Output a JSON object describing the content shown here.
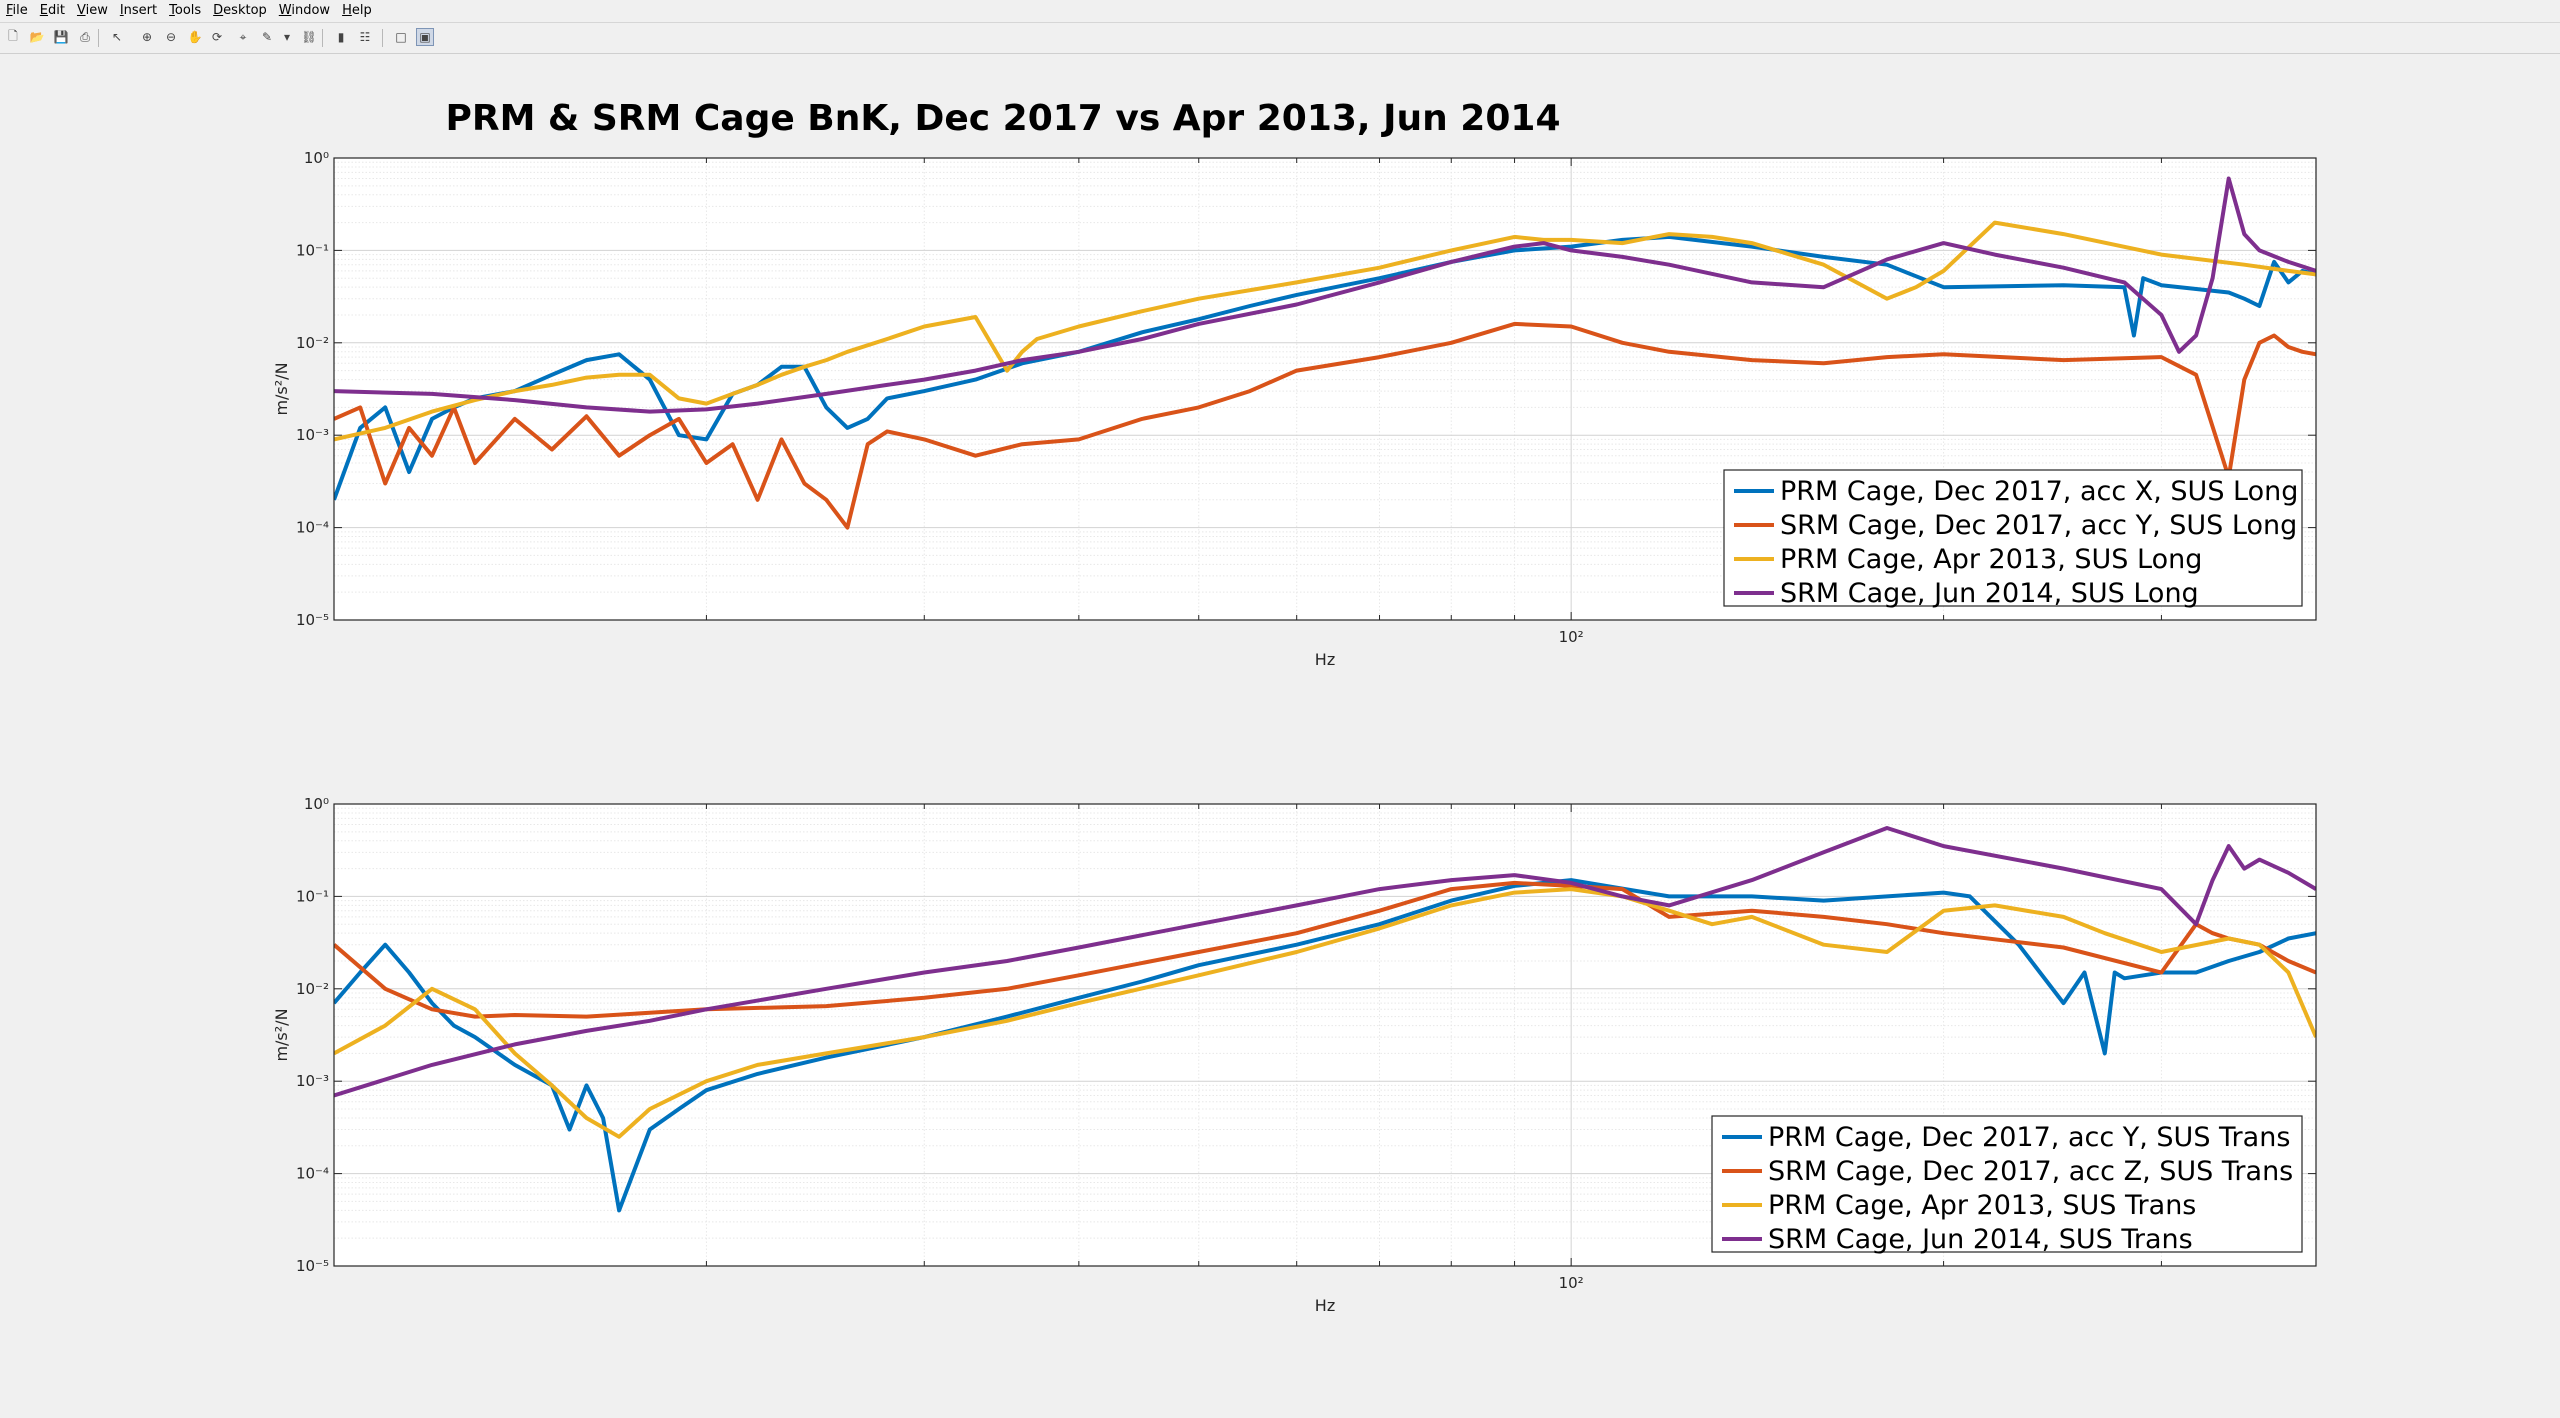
{
  "menu": [
    "File",
    "Edit",
    "View",
    "Insert",
    "Tools",
    "Desktop",
    "Window",
    "Help"
  ],
  "toolbar": [
    {
      "icon": "new-figure-icon",
      "glyph": "🗋"
    },
    {
      "icon": "open-file-icon",
      "glyph": "📂"
    },
    {
      "icon": "save-icon",
      "glyph": "💾"
    },
    {
      "icon": "print-icon",
      "glyph": "⎙"
    },
    {
      "icon": "select-arrow-icon",
      "glyph": "↖"
    },
    {
      "icon": "zoom-in-icon",
      "glyph": "⊕"
    },
    {
      "icon": "zoom-out-icon",
      "glyph": "⊖"
    },
    {
      "icon": "pan-icon",
      "glyph": "✋"
    },
    {
      "icon": "rotate-3d-icon",
      "glyph": "⟳"
    },
    {
      "icon": "data-cursor-icon",
      "glyph": "⌖"
    },
    {
      "icon": "brush-icon",
      "glyph": "✎"
    },
    {
      "icon": "brush-menu-icon",
      "glyph": "▾"
    },
    {
      "icon": "link-plot-icon",
      "glyph": "⛓"
    },
    {
      "icon": "colorbar-icon",
      "glyph": "▮"
    },
    {
      "icon": "legend-icon",
      "glyph": "☷"
    },
    {
      "icon": "hide-plot-tools-icon",
      "glyph": "□"
    },
    {
      "icon": "show-plot-tools-icon",
      "glyph": "▣"
    }
  ],
  "colors": {
    "blue": "#0072BD",
    "orange": "#D95319",
    "yellow": "#EDB120",
    "purple": "#7E2F8E"
  },
  "chart_data": [
    {
      "type": "line",
      "title": "PRM & SRM Cage BnK, Dec 2017 vs Apr 2013, Jun 2014",
      "xlabel": "Hz",
      "ylabel": "m/s²/N",
      "xscale": "log",
      "yscale": "log",
      "xlim": [
        10,
        400
      ],
      "ylim": [
        1e-05,
        1
      ],
      "x_tick_label": "10²",
      "y_tick_labels": [
        "10⁰",
        "10⁻¹",
        "10⁻²",
        "10⁻³",
        "10⁻⁴",
        "10⁻⁵"
      ],
      "grid": "on",
      "legend_location": "bottom-right",
      "series": [
        {
          "name": "PRM Cage, Dec 2017, acc X, SUS Long",
          "color": "#0072BD",
          "x": [
            10,
            10.5,
            11,
            11.5,
            12,
            12.5,
            13,
            14,
            15,
            16,
            17,
            18,
            19,
            20,
            21,
            22,
            23,
            24,
            25,
            26,
            27,
            28,
            30,
            33,
            36,
            40,
            45,
            50,
            55,
            60,
            70,
            80,
            90,
            100,
            110,
            120,
            140,
            160,
            180,
            200,
            250,
            280,
            285,
            290,
            300,
            340,
            350,
            360,
            370,
            380,
            390,
            400
          ],
          "y": [
            0.0002,
            0.0012,
            0.002,
            0.0004,
            0.0015,
            0.002,
            0.0025,
            0.003,
            0.0045,
            0.0065,
            0.0075,
            0.004,
            0.001,
            0.0009,
            0.0028,
            0.0035,
            0.0055,
            0.0055,
            0.002,
            0.0012,
            0.0015,
            0.0025,
            0.003,
            0.004,
            0.006,
            0.008,
            0.013,
            0.018,
            0.025,
            0.033,
            0.05,
            0.075,
            0.1,
            0.11,
            0.13,
            0.14,
            0.11,
            0.085,
            0.07,
            0.04,
            0.042,
            0.04,
            0.012,
            0.05,
            0.042,
            0.035,
            0.03,
            0.025,
            0.075,
            0.045,
            0.06,
            0.055
          ]
        },
        {
          "name": "SRM Cage, Dec 2017, acc Y, SUS Long",
          "color": "#D95319",
          "x": [
            10,
            10.5,
            11,
            11.5,
            12,
            12.5,
            13,
            14,
            15,
            16,
            17,
            18,
            19,
            20,
            21,
            22,
            23,
            24,
            25,
            26,
            27,
            28,
            30,
            33,
            36,
            40,
            45,
            50,
            55,
            60,
            70,
            80,
            90,
            100,
            110,
            120,
            140,
            160,
            180,
            200,
            250,
            300,
            320,
            340,
            350,
            360,
            370,
            380,
            390,
            400
          ],
          "y": [
            0.0015,
            0.002,
            0.0003,
            0.0012,
            0.0006,
            0.002,
            0.0005,
            0.0015,
            0.0007,
            0.0016,
            0.0006,
            0.001,
            0.0015,
            0.0005,
            0.0008,
            0.0002,
            0.0009,
            0.0003,
            0.0002,
            0.0001,
            0.0008,
            0.0011,
            0.0009,
            0.0006,
            0.0008,
            0.0009,
            0.0015,
            0.002,
            0.003,
            0.005,
            0.007,
            0.01,
            0.016,
            0.015,
            0.01,
            0.008,
            0.0065,
            0.006,
            0.007,
            0.0075,
            0.0065,
            0.007,
            0.0045,
            0.00035,
            0.004,
            0.01,
            0.012,
            0.009,
            0.008,
            0.0075
          ]
        },
        {
          "name": "PRM Cage, Apr 2013, SUS Long",
          "color": "#EDB120",
          "x": [
            10,
            11,
            12,
            13,
            14,
            15,
            16,
            17,
            18,
            19,
            20,
            21,
            22,
            23,
            24,
            25,
            26,
            28,
            30,
            33,
            35,
            36,
            37,
            40,
            45,
            50,
            60,
            70,
            80,
            90,
            95,
            100,
            110,
            120,
            130,
            140,
            160,
            180,
            190,
            200,
            220,
            250,
            300,
            350,
            380,
            400
          ],
          "y": [
            0.0009,
            0.0012,
            0.0018,
            0.0024,
            0.003,
            0.0035,
            0.0042,
            0.0045,
            0.0045,
            0.0025,
            0.0022,
            0.0028,
            0.0035,
            0.0045,
            0.0055,
            0.0065,
            0.008,
            0.011,
            0.015,
            0.019,
            0.005,
            0.008,
            0.011,
            0.015,
            0.022,
            0.03,
            0.045,
            0.065,
            0.1,
            0.14,
            0.13,
            0.13,
            0.12,
            0.15,
            0.14,
            0.12,
            0.07,
            0.03,
            0.04,
            0.06,
            0.2,
            0.15,
            0.09,
            0.07,
            0.06,
            0.055
          ]
        },
        {
          "name": "SRM Cage, Jun 2014, SUS Long",
          "color": "#7E2F8E",
          "x": [
            10,
            12,
            14,
            16,
            18,
            20,
            22,
            25,
            28,
            30,
            33,
            36,
            40,
            45,
            50,
            60,
            70,
            80,
            90,
            95,
            100,
            110,
            120,
            140,
            160,
            180,
            200,
            220,
            250,
            280,
            300,
            310,
            320,
            330,
            340,
            350,
            360,
            380,
            400
          ],
          "y": [
            0.003,
            0.0028,
            0.0024,
            0.002,
            0.0018,
            0.0019,
            0.0022,
            0.0028,
            0.0035,
            0.004,
            0.005,
            0.0065,
            0.008,
            0.011,
            0.016,
            0.026,
            0.045,
            0.075,
            0.11,
            0.12,
            0.1,
            0.085,
            0.07,
            0.045,
            0.04,
            0.08,
            0.12,
            0.09,
            0.065,
            0.045,
            0.02,
            0.008,
            0.012,
            0.05,
            0.6,
            0.15,
            0.1,
            0.075,
            0.06
          ]
        }
      ]
    },
    {
      "type": "line",
      "title": "",
      "xlabel": "Hz",
      "ylabel": "m/s²/N",
      "xscale": "log",
      "yscale": "log",
      "xlim": [
        10,
        400
      ],
      "ylim": [
        1e-05,
        1
      ],
      "x_tick_label": "10²",
      "y_tick_labels": [
        "10⁰",
        "10⁻¹",
        "10⁻²",
        "10⁻³",
        "10⁻⁴",
        "10⁻⁵"
      ],
      "grid": "on",
      "legend_location": "bottom-right",
      "series": [
        {
          "name": "PRM Cage, Dec 2017, acc Y, SUS Trans",
          "color": "#0072BD",
          "x": [
            10,
            10.5,
            11,
            11.5,
            12,
            12.5,
            13,
            14,
            15,
            15.5,
            16,
            16.5,
            17,
            18,
            19,
            20,
            22,
            25,
            30,
            35,
            40,
            45,
            50,
            60,
            70,
            80,
            90,
            100,
            120,
            140,
            160,
            180,
            200,
            210,
            230,
            250,
            260,
            270,
            275,
            280,
            300,
            320,
            340,
            360,
            380,
            400
          ],
          "y": [
            0.007,
            0.015,
            0.03,
            0.015,
            0.007,
            0.004,
            0.003,
            0.0015,
            0.0009,
            0.0003,
            0.0009,
            0.0004,
            4e-05,
            0.0003,
            0.0005,
            0.0008,
            0.0012,
            0.0018,
            0.003,
            0.005,
            0.008,
            0.012,
            0.018,
            0.03,
            0.05,
            0.09,
            0.13,
            0.15,
            0.1,
            0.1,
            0.09,
            0.1,
            0.11,
            0.1,
            0.03,
            0.007,
            0.015,
            0.002,
            0.015,
            0.013,
            0.015,
            0.015,
            0.02,
            0.025,
            0.035,
            0.04
          ]
        },
        {
          "name": "SRM Cage, Dec 2017, acc Z, SUS Trans",
          "color": "#D95319",
          "x": [
            10,
            11,
            12,
            13,
            14,
            16,
            18,
            20,
            25,
            30,
            35,
            40,
            50,
            60,
            70,
            80,
            90,
            100,
            110,
            120,
            140,
            160,
            180,
            200,
            250,
            300,
            320,
            330,
            340,
            360,
            380,
            400
          ],
          "y": [
            0.03,
            0.01,
            0.006,
            0.005,
            0.0052,
            0.005,
            0.0055,
            0.006,
            0.0065,
            0.008,
            0.01,
            0.014,
            0.025,
            0.04,
            0.07,
            0.12,
            0.14,
            0.13,
            0.12,
            0.06,
            0.07,
            0.06,
            0.05,
            0.04,
            0.028,
            0.015,
            0.05,
            0.04,
            0.035,
            0.03,
            0.02,
            0.015
          ]
        },
        {
          "name": "PRM Cage, Apr 2013, SUS Trans",
          "color": "#EDB120",
          "x": [
            10,
            11,
            12,
            13,
            14,
            15,
            16,
            17,
            18,
            20,
            22,
            25,
            30,
            35,
            40,
            50,
            60,
            70,
            80,
            90,
            100,
            110,
            120,
            130,
            140,
            160,
            180,
            200,
            220,
            250,
            270,
            300,
            340,
            360,
            380,
            400
          ],
          "y": [
            0.002,
            0.004,
            0.01,
            0.006,
            0.002,
            0.0009,
            0.0004,
            0.00025,
            0.0005,
            0.001,
            0.0015,
            0.002,
            0.003,
            0.0045,
            0.007,
            0.014,
            0.025,
            0.045,
            0.08,
            0.11,
            0.12,
            0.1,
            0.07,
            0.05,
            0.06,
            0.03,
            0.025,
            0.07,
            0.08,
            0.06,
            0.04,
            0.025,
            0.035,
            0.03,
            0.015,
            0.003
          ]
        },
        {
          "name": "SRM Cage, Jun 2014, SUS Trans",
          "color": "#7E2F8E",
          "x": [
            10,
            12,
            14,
            16,
            18,
            20,
            25,
            30,
            35,
            40,
            50,
            60,
            70,
            80,
            90,
            100,
            110,
            120,
            140,
            160,
            180,
            200,
            250,
            300,
            320,
            330,
            340,
            350,
            360,
            380,
            400
          ],
          "y": [
            0.0007,
            0.0015,
            0.0025,
            0.0035,
            0.0045,
            0.006,
            0.01,
            0.015,
            0.02,
            0.028,
            0.05,
            0.08,
            0.12,
            0.15,
            0.17,
            0.14,
            0.1,
            0.08,
            0.15,
            0.3,
            0.55,
            0.35,
            0.2,
            0.12,
            0.05,
            0.15,
            0.35,
            0.2,
            0.25,
            0.18,
            0.12
          ]
        }
      ]
    }
  ]
}
